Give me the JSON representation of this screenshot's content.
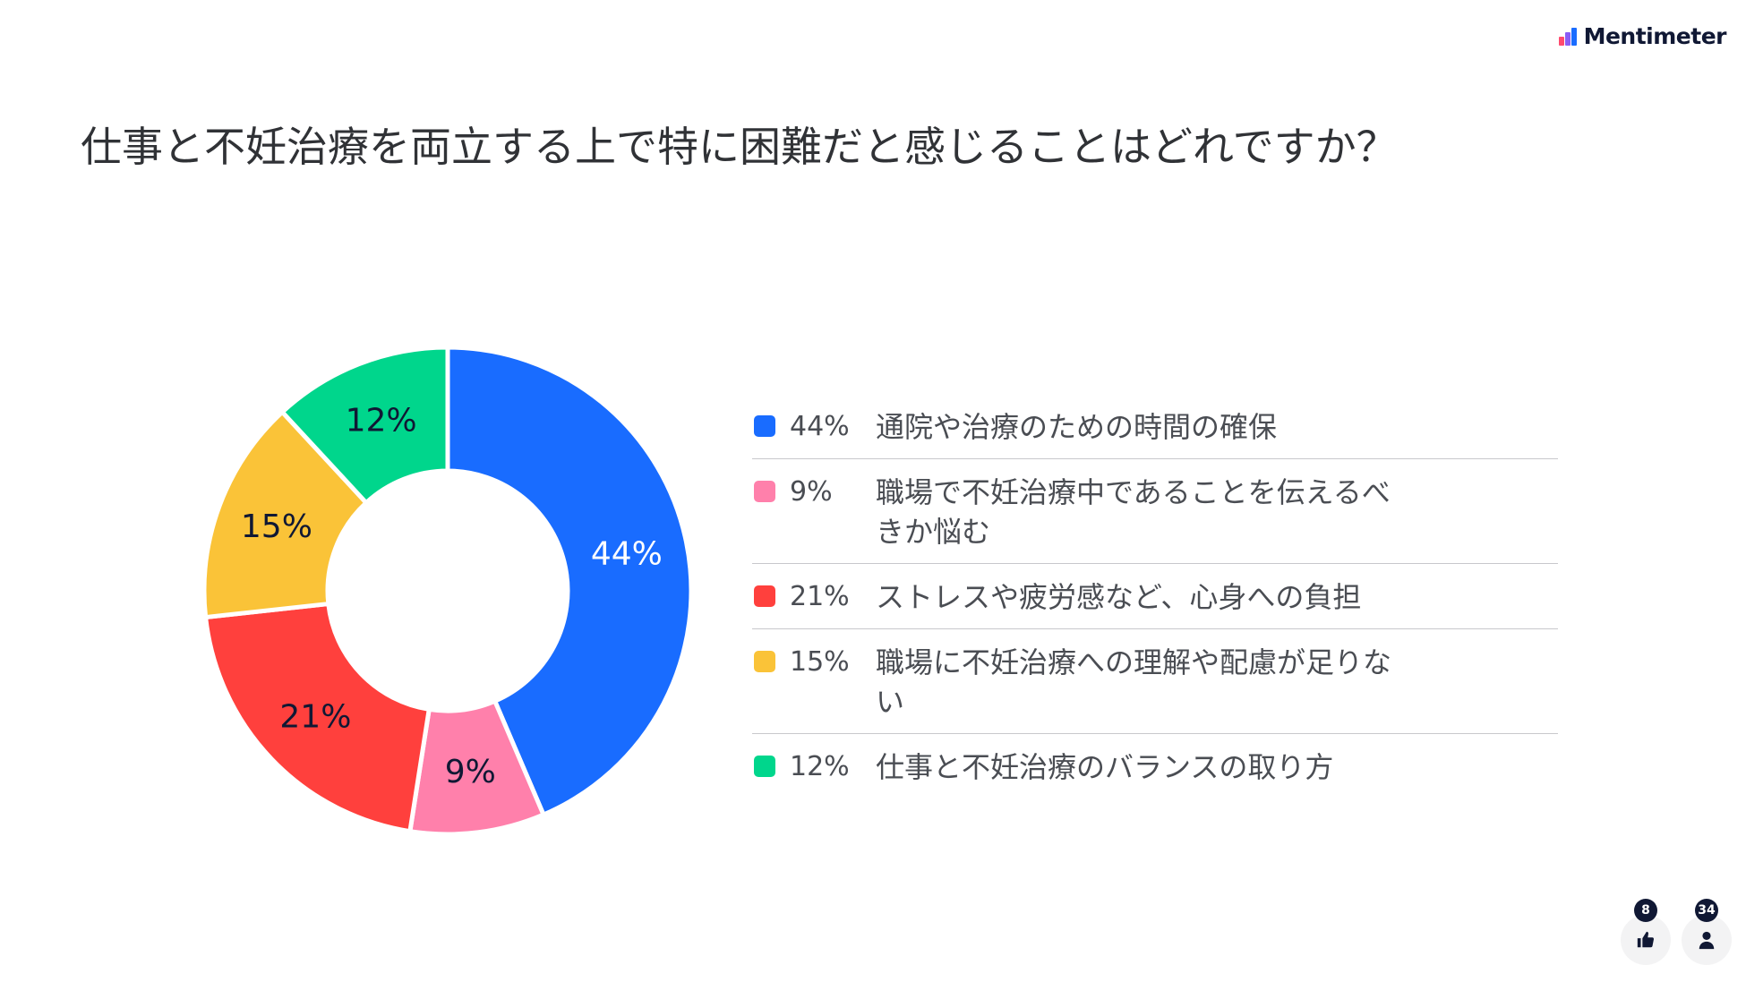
{
  "brand": {
    "name": "Mentimeter",
    "logo_colors": [
      "#ff4a6e",
      "#8a5cf6",
      "#1a6cff"
    ]
  },
  "title": "仕事と不妊治療を両立する上で特に困難だと感じることはどれですか？",
  "chart_data": {
    "type": "pie",
    "variant": "donut",
    "title": "仕事と不妊治療を両立する上で特に困難だと感じることはどれですか？",
    "slices": [
      {
        "label": "通院や治療のための時間の確保",
        "value": 44,
        "display": "44%",
        "color": "#196cff",
        "label_color": "#ffffff"
      },
      {
        "label": "職場で不妊治療中であることを伝えるべきか悩む",
        "value": 9,
        "display": "9%",
        "color": "#ff80ab",
        "label_color": "#101834"
      },
      {
        "label": "ストレスや疲労感など、心身への負担",
        "value": 21,
        "display": "21%",
        "color": "#ff403d",
        "label_color": "#101834"
      },
      {
        "label": "職場に不妊治療への理解や配慮が足りない",
        "value": 15,
        "display": "15%",
        "color": "#fac338",
        "label_color": "#101834"
      },
      {
        "label": "仕事と不妊治療のバランスの取り方",
        "value": 12,
        "display": "12%",
        "color": "#00d68c",
        "label_color": "#101834"
      }
    ],
    "legend_position": "right"
  },
  "legend": [
    {
      "pct": "44%",
      "label": "通院や治療のための時間の確保",
      "color": "#196cff"
    },
    {
      "pct": "9%",
      "label": "職場で不妊治療中であることを伝えるべきか悩む",
      "color": "#ff80ab"
    },
    {
      "pct": "21%",
      "label": "ストレスや疲労感など、心身への負担",
      "color": "#ff403d"
    },
    {
      "pct": "15%",
      "label": "職場に不妊治療への理解や配慮が足りない",
      "color": "#fac338"
    },
    {
      "pct": "12%",
      "label": "仕事と不妊治療のバランスの取り方",
      "color": "#00d68c"
    }
  ],
  "reactions": {
    "likes_count": "8",
    "participants_count": "34",
    "like_icon": "thumbs-up-icon",
    "participants_icon": "person-icon"
  }
}
